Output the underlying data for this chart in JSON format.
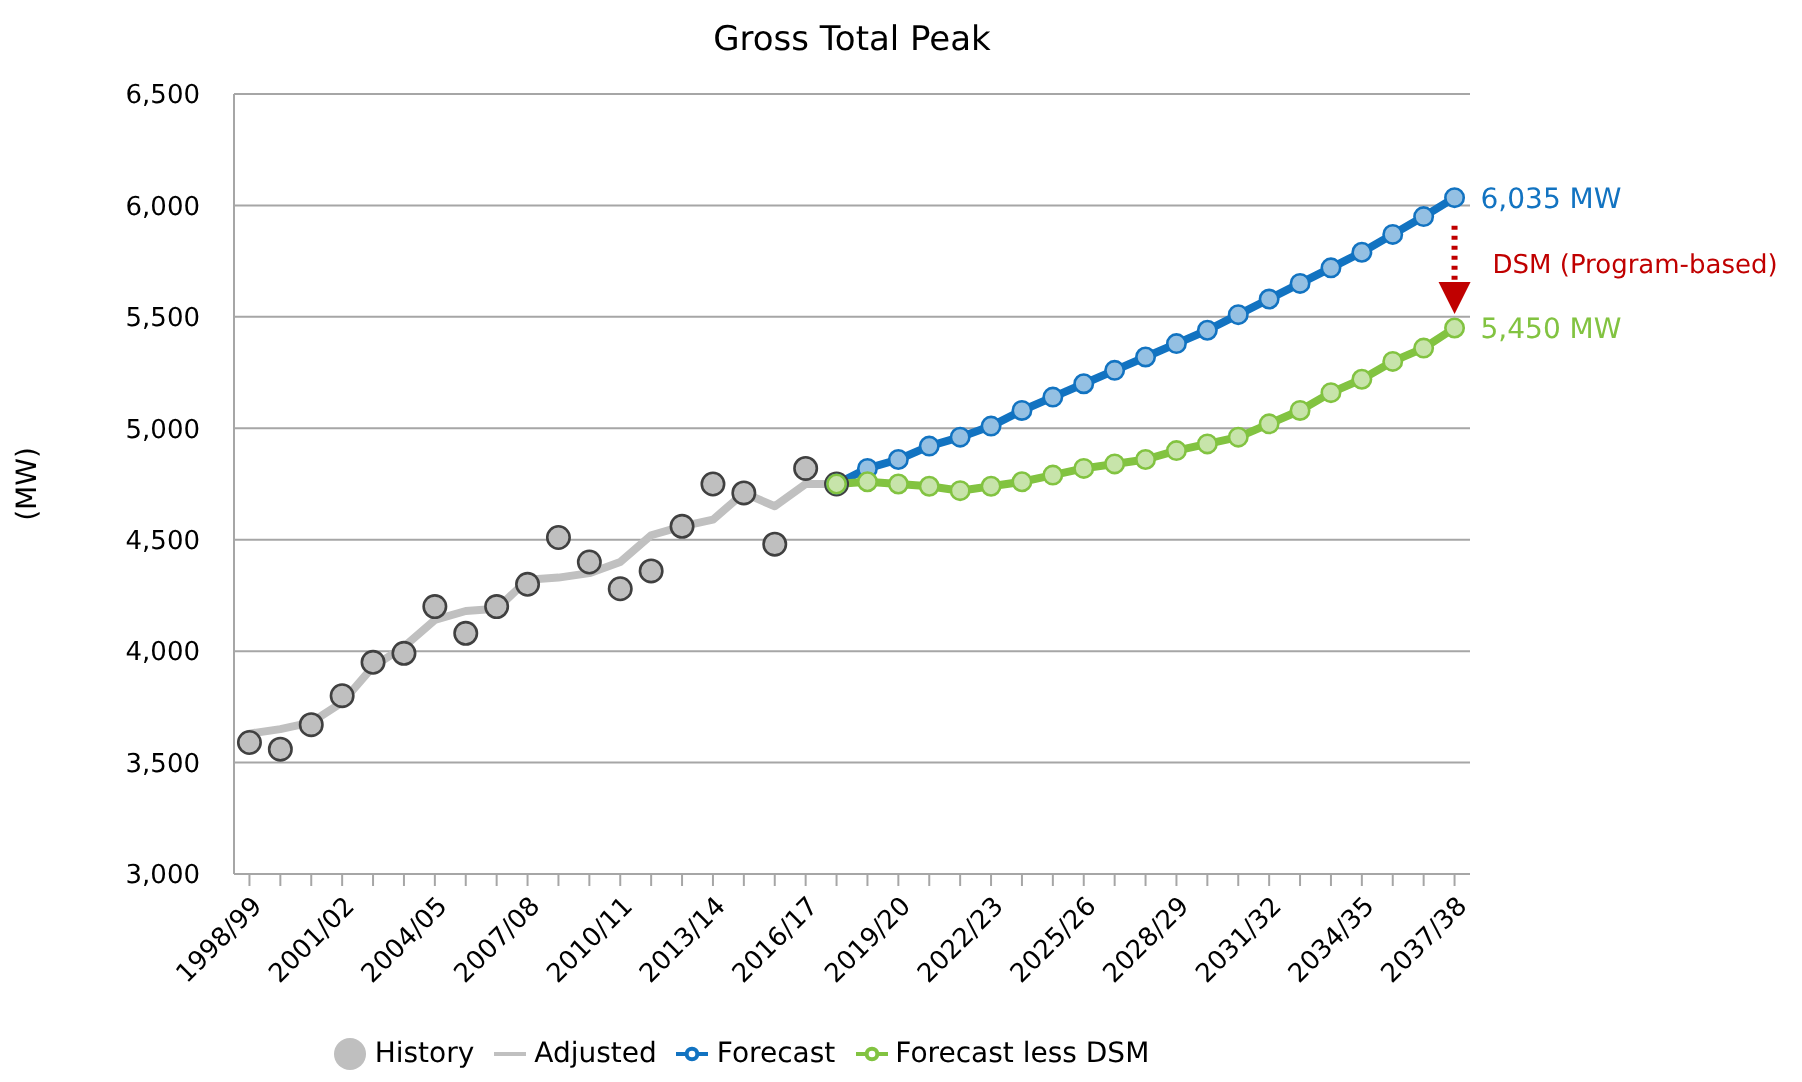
{
  "chart_data": {
    "type": "line",
    "title": "Gross Total Peak",
    "ylabel": "(MW)",
    "categories": [
      "1998/99",
      null,
      null,
      "2001/02",
      null,
      null,
      "2004/05",
      null,
      null,
      "2007/08",
      null,
      null,
      "2010/11",
      null,
      null,
      "2013/14",
      null,
      null,
      "2016/17",
      null,
      null,
      "2019/20",
      null,
      null,
      "2022/23",
      null,
      null,
      "2025/26",
      null,
      null,
      "2028/29",
      null,
      null,
      "2031/32",
      null,
      null,
      "2034/35",
      null,
      null,
      "2037/38"
    ],
    "series": [
      {
        "name": "History",
        "type": "scatter",
        "color": "#bfbfbf",
        "values": [
          3590,
          3560,
          3670,
          3800,
          3950,
          3990,
          4200,
          4080,
          4200,
          4300,
          4510,
          4400,
          4280,
          4360,
          4560,
          4750,
          4710,
          4480,
          4820,
          4750,
          null,
          null,
          null,
          null,
          null,
          null,
          null,
          null,
          null,
          null,
          null,
          null,
          null,
          null,
          null,
          null,
          null,
          null,
          null,
          null
        ]
      },
      {
        "name": "Adjusted",
        "color": "#c0c0c0",
        "marker": "none",
        "values": [
          3630,
          3650,
          3680,
          3770,
          3930,
          4020,
          4140,
          4180,
          4190,
          4320,
          4330,
          4350,
          4400,
          4520,
          4560,
          4590,
          4710,
          4650,
          4750,
          4750,
          null,
          null,
          null,
          null,
          null,
          null,
          null,
          null,
          null,
          null,
          null,
          null,
          null,
          null,
          null,
          null,
          null,
          null,
          null,
          null
        ]
      },
      {
        "name": "Forecast",
        "color": "#1273c1",
        "values": [
          null,
          null,
          null,
          null,
          null,
          null,
          null,
          null,
          null,
          null,
          null,
          null,
          null,
          null,
          null,
          null,
          null,
          null,
          null,
          4750,
          4820,
          4860,
          4920,
          4960,
          5010,
          5080,
          5140,
          5200,
          5260,
          5320,
          5380,
          5440,
          5510,
          5580,
          5650,
          5720,
          5790,
          5870,
          5950,
          6035
        ]
      },
      {
        "name": "Forecast less DSM",
        "color": "#82c341",
        "values": [
          null,
          null,
          null,
          null,
          null,
          null,
          null,
          null,
          null,
          null,
          null,
          null,
          null,
          null,
          null,
          null,
          null,
          null,
          null,
          4750,
          4760,
          4750,
          4740,
          4720,
          4740,
          4760,
          4790,
          4820,
          4840,
          4860,
          4900,
          4930,
          4960,
          5020,
          5080,
          5160,
          5220,
          5300,
          5360,
          5450
        ]
      }
    ],
    "ylim": [
      3000,
      6500
    ],
    "yticks": [
      {
        "value": 3000,
        "label": "3,000"
      },
      {
        "value": 3500,
        "label": "3,500"
      },
      {
        "value": 4000,
        "label": "4,000"
      },
      {
        "value": 4500,
        "label": "4,500"
      },
      {
        "value": 5000,
        "label": "5,000"
      },
      {
        "value": 5500,
        "label": "5,500"
      },
      {
        "value": 6000,
        "label": "6,000"
      },
      {
        "value": 6500,
        "label": "6,500"
      }
    ],
    "grid": "y",
    "legend": "bottom",
    "marker": "circle",
    "annotations": [
      {
        "text": "6,035 MW",
        "x": "2037/38",
        "y": 6035
      },
      {
        "text": "5,450 MW",
        "x": "2037/38",
        "y": 5450
      },
      "DSM (Program-based)"
    ]
  }
}
